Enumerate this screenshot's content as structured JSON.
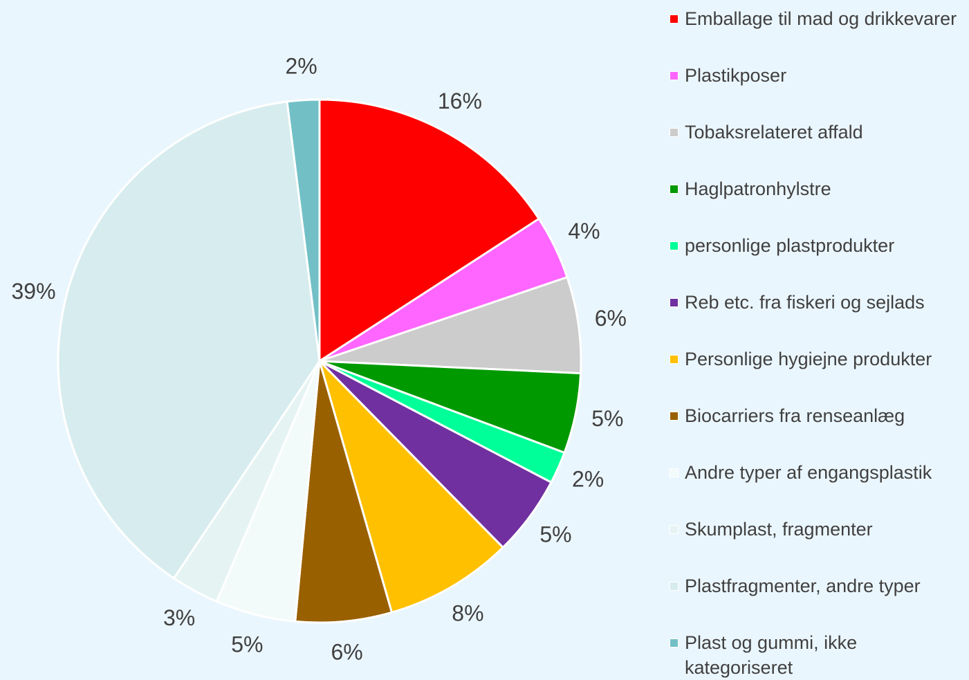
{
  "chart_data": {
    "type": "pie",
    "categories": [
      "Emballage til mad og drikkevarer",
      "Plastikposer",
      "Tobaksrelateret affald",
      "Haglpatronhylstre",
      "personlige plastprodukter",
      "Reb etc. fra fiskeri og sejlads",
      "Personlige hygiejne produkter",
      "Biocarriers fra renseanlæg",
      "Andre typer af engangsplastik",
      "Skumplast, fragmenter",
      "Plastfragmenter, andre typer",
      "Plast og gummi, ikke kategoriseret"
    ],
    "values": [
      16,
      4,
      6,
      5,
      2,
      5,
      8,
      6,
      5,
      3,
      39,
      2
    ],
    "value_labels": [
      "16%",
      "4%",
      "6%",
      "5%",
      "2%",
      "5%",
      "8%",
      "6%",
      "5%",
      "3%",
      "39%",
      "2%"
    ],
    "colors": [
      "#ff0000",
      "#ff66ff",
      "#cccccc",
      "#009900",
      "#00ff99",
      "#7030a0",
      "#ffc000",
      "#996000",
      "#f2fafa",
      "#e5f3f3",
      "#d7ecee",
      "#72c0c6"
    ],
    "legend": "right"
  }
}
